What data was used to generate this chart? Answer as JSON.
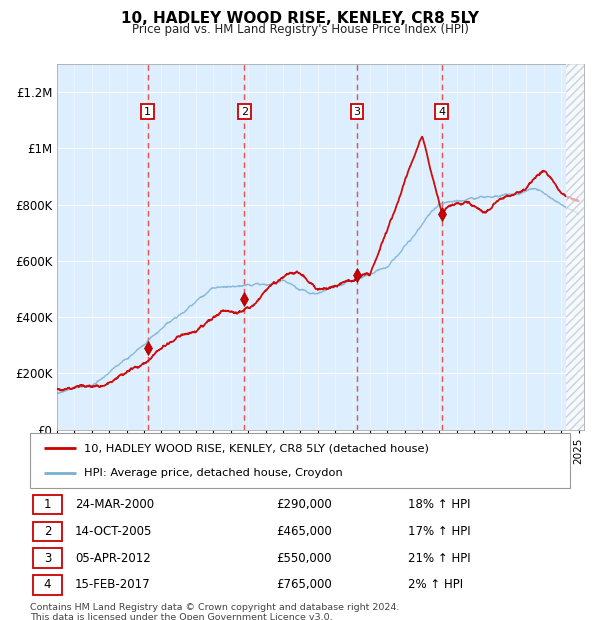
{
  "title": "10, HADLEY WOOD RISE, KENLEY, CR8 5LY",
  "subtitle": "Price paid vs. HM Land Registry's House Price Index (HPI)",
  "ylim": [
    0,
    1300000
  ],
  "yticks": [
    0,
    200000,
    400000,
    600000,
    800000,
    1000000,
    1200000
  ],
  "ytick_labels": [
    "£0",
    "£200K",
    "£400K",
    "£600K",
    "£800K",
    "£1M",
    "£1.2M"
  ],
  "chart_bg_color": "#ddeeff",
  "grid_color": "#ccddee",
  "red_line_color": "#cc0000",
  "blue_line_color": "#7ab0d4",
  "sale_marker_color": "#cc0000",
  "dashed_line_color": "#ee3333",
  "sale_points": [
    {
      "year": 2000.22,
      "price": 290000,
      "label": "1"
    },
    {
      "year": 2005.78,
      "price": 465000,
      "label": "2"
    },
    {
      "year": 2012.25,
      "price": 550000,
      "label": "3"
    },
    {
      "year": 2017.12,
      "price": 765000,
      "label": "4"
    }
  ],
  "legend_red_label": "10, HADLEY WOOD RISE, KENLEY, CR8 5LY (detached house)",
  "legend_blue_label": "HPI: Average price, detached house, Croydon",
  "table_rows": [
    {
      "num": "1",
      "date": "24-MAR-2000",
      "price": "£290,000",
      "hpi": "18% ↑ HPI"
    },
    {
      "num": "2",
      "date": "14-OCT-2005",
      "price": "£465,000",
      "hpi": "17% ↑ HPI"
    },
    {
      "num": "3",
      "date": "05-APR-2012",
      "price": "£550,000",
      "hpi": "21% ↑ HPI"
    },
    {
      "num": "4",
      "date": "15-FEB-2017",
      "price": "£765,000",
      "hpi": "2% ↑ HPI"
    }
  ],
  "footer": "Contains HM Land Registry data © Crown copyright and database right 2024.\nThis data is licensed under the Open Government Licence v3.0."
}
